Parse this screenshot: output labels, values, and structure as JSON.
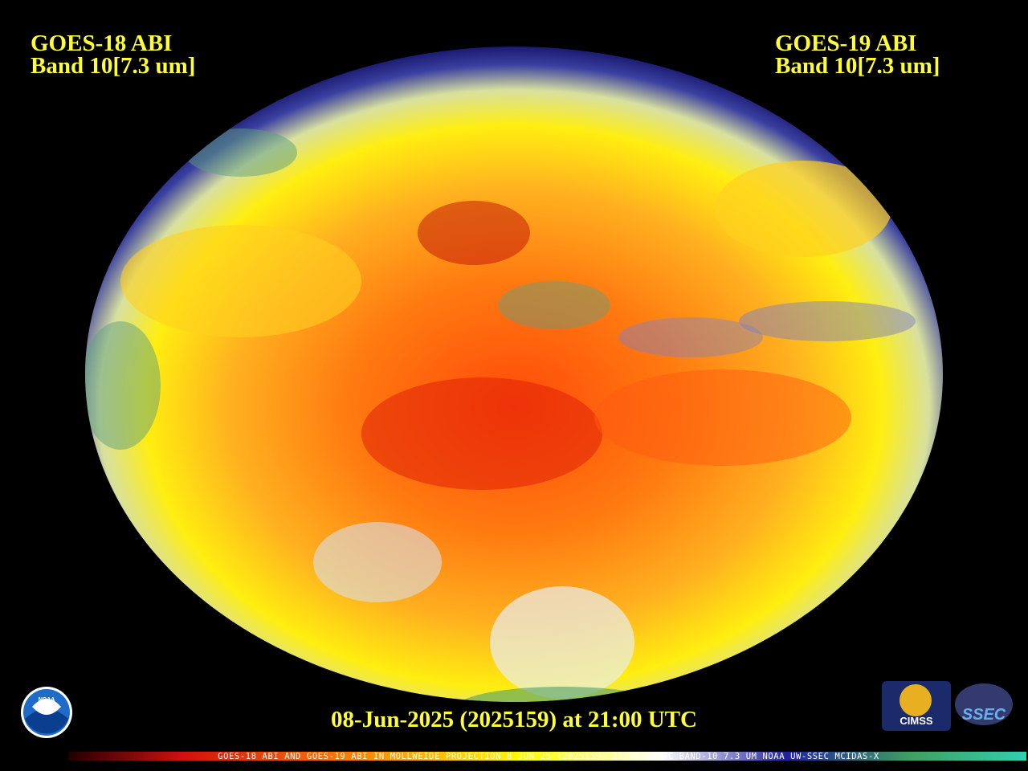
{
  "left_label": {
    "lines": [
      "GOES-18 ABI",
      "Band 10[7.3 um]"
    ]
  },
  "right_label": {
    "lines": [
      "GOES-19 ABI",
      "Band 10[7.3 um]"
    ]
  },
  "timestamp": "08-Jun-2025 (2025159) at 21:00 UTC",
  "footer": "GOES-18 ABI AND GOES-19 ABI IN MOLLWEIDE PROJECTION 8 JUN 25 (2025159) 21:00:21UTC BAND-10 7.3 UM NOAA UW-SSEC MCIDAS-X",
  "logos": {
    "noaa": "NOAA",
    "cimss": "CIMSS",
    "ssec": "SSEC"
  }
}
